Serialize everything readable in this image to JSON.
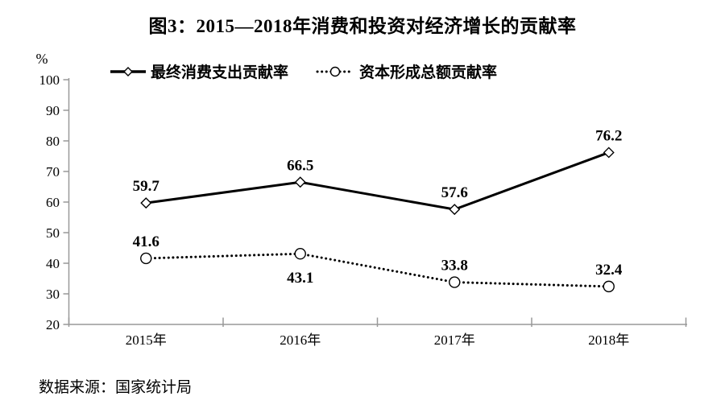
{
  "title": "图3：2015—2018年消费和投资对经济增长的贡献率",
  "source_note": "数据来源：国家统计局",
  "colors": {
    "background": "#ffffff",
    "text": "#000000",
    "axis": "#999999",
    "series": "#000000"
  },
  "chart_data": {
    "type": "line",
    "title": "图3：2015—2018年消费和投资对经济增长的贡献率",
    "categories": [
      "2015年",
      "2016年",
      "2017年",
      "2018年"
    ],
    "series": [
      {
        "name": "最终消费支出贡献率",
        "values": [
          59.7,
          66.5,
          57.6,
          76.2
        ],
        "line_style": "solid",
        "marker": "diamond",
        "label_positions": [
          "above",
          "above",
          "above",
          "above"
        ]
      },
      {
        "name": "资本形成总额贡献率",
        "values": [
          41.6,
          43.1,
          33.8,
          32.4
        ],
        "line_style": "dotted",
        "marker": "circle",
        "label_positions": [
          "above",
          "below",
          "above",
          "above"
        ]
      }
    ],
    "xlabel": "",
    "ylabel": "%",
    "ylim": [
      20,
      100
    ],
    "yticks": [
      100,
      90,
      80,
      70,
      60,
      50,
      40,
      30,
      20
    ],
    "grid": false,
    "legend_position": "top"
  }
}
